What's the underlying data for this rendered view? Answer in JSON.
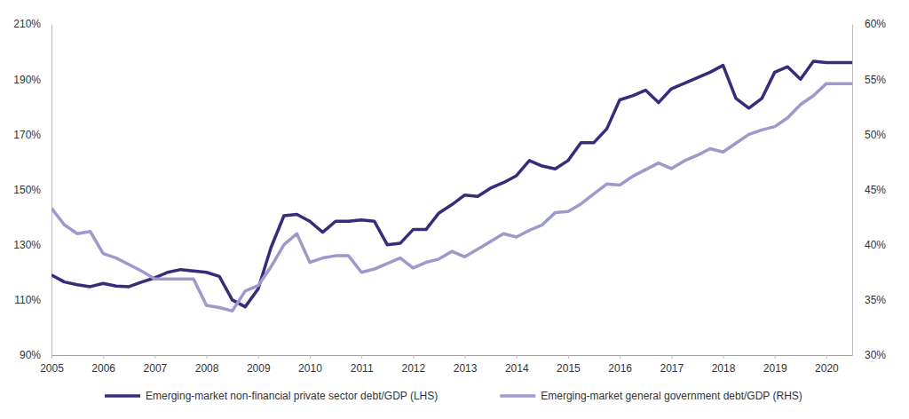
{
  "chart_data": {
    "type": "line",
    "x": [
      2005,
      2005.25,
      2005.5,
      2005.75,
      2006,
      2006.25,
      2006.5,
      2006.75,
      2007,
      2007.25,
      2007.5,
      2007.75,
      2008,
      2008.25,
      2008.5,
      2008.75,
      2009,
      2009.25,
      2009.5,
      2009.75,
      2010,
      2010.25,
      2010.5,
      2010.75,
      2011,
      2011.25,
      2011.5,
      2011.75,
      2012,
      2012.25,
      2012.5,
      2012.75,
      2013,
      2013.25,
      2013.5,
      2013.75,
      2014,
      2014.25,
      2014.5,
      2014.75,
      2015,
      2015.25,
      2015.5,
      2015.75,
      2016,
      2016.25,
      2016.5,
      2016.75,
      2017,
      2017.25,
      2017.5,
      2017.75,
      2018,
      2018.25,
      2018.5,
      2018.75,
      2019,
      2019.25,
      2019.5,
      2019.75,
      2020,
      2020.25,
      2020.5
    ],
    "series": [
      {
        "name": "Emerging-market non-financial private sector debt/GDP (LHS)",
        "color": "#3a2a7c",
        "values": [
          119,
          116.5,
          115.5,
          114.8,
          116,
          115,
          114.8,
          116.5,
          118,
          120,
          121,
          120.5,
          120,
          118.5,
          110,
          107.5,
          114,
          129,
          140.5,
          141,
          138.5,
          134.5,
          138.5,
          138.5,
          139,
          138.5,
          130,
          130.5,
          135.5,
          135.5,
          141.5,
          144.5,
          148,
          147.5,
          150.5,
          152.5,
          155,
          160.5,
          158.5,
          157.5,
          160.5,
          167,
          167,
          172,
          182.5,
          184,
          186,
          181.5,
          186.5,
          188.5,
          190.5,
          192.5,
          195,
          183,
          179.5,
          183,
          192.5,
          194.5,
          190,
          196.5,
          196,
          196,
          196
        ]
      },
      {
        "name": "Emerging-market general government debt/GDP (RHS)",
        "color": "#9c9acb",
        "axis": "y2",
        "values": [
          43.3,
          41.8,
          41.0,
          41.2,
          39.2,
          38.8,
          38.2,
          37.6,
          36.9,
          36.9,
          36.9,
          36.9,
          34.5,
          34.3,
          34.0,
          35.8,
          36.3,
          38.0,
          40.0,
          41.0,
          38.4,
          38.8,
          39.0,
          39.0,
          37.5,
          37.8,
          38.3,
          38.8,
          37.9,
          38.4,
          38.7,
          39.4,
          38.9,
          39.6,
          40.3,
          41.0,
          40.7,
          41.3,
          41.8,
          42.9,
          43.0,
          43.7,
          44.6,
          45.5,
          45.4,
          46.2,
          46.8,
          47.4,
          46.9,
          47.6,
          48.1,
          48.7,
          48.4,
          49.2,
          50.0,
          50.4,
          50.7,
          51.5,
          52.7,
          53.5,
          54.6,
          54.6,
          54.6
        ]
      }
    ],
    "xlim": [
      2005,
      2020.5
    ],
    "xticks": [
      2005,
      2006,
      2007,
      2008,
      2009,
      2010,
      2011,
      2012,
      2013,
      2014,
      2015,
      2016,
      2017,
      2018,
      2019,
      2020
    ],
    "ylim": [
      90,
      210
    ],
    "yticks": [
      {
        "value": 90,
        "label": "90%"
      },
      {
        "value": 110,
        "label": "110%"
      },
      {
        "value": 130,
        "label": "130%"
      },
      {
        "value": 150,
        "label": "150%"
      },
      {
        "value": 170,
        "label": "170%"
      },
      {
        "value": 190,
        "label": "190%"
      },
      {
        "value": 210,
        "label": "210%"
      }
    ],
    "y2lim": [
      30,
      60
    ],
    "y2ticks": [
      {
        "value": 30,
        "label": "30%"
      },
      {
        "value": 35,
        "label": "35%"
      },
      {
        "value": 40,
        "label": "40%"
      },
      {
        "value": 45,
        "label": "45%"
      },
      {
        "value": 50,
        "label": "50%"
      },
      {
        "value": 55,
        "label": "55%"
      },
      {
        "value": 60,
        "label": "60%"
      }
    ],
    "grid": false,
    "legend": "bottom"
  }
}
